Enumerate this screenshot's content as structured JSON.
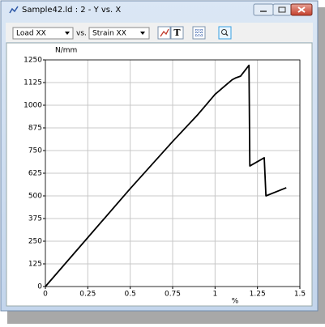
{
  "window": {
    "title": "Sample42.ld : 2 - Y vs. X"
  },
  "toolbar": {
    "y_select": "Load XX",
    "vs": "vs.",
    "x_select": "Strain XX",
    "text_button": "T"
  },
  "chart_data": {
    "type": "line",
    "y_label": "N/mm",
    "x_label": "%",
    "x": [
      0,
      0.25,
      0.5,
      0.75,
      0.9,
      1.0,
      1.05,
      1.1,
      1.12,
      1.15,
      1.2,
      1.205,
      1.29,
      1.3,
      1.42
    ],
    "series": [
      {
        "name": "Load XX",
        "color": "#000000",
        "values": [
          0,
          270,
          540,
          800,
          950,
          1060,
          1100,
          1140,
          1150,
          1160,
          1220,
          665,
          710,
          500,
          545
        ]
      }
    ],
    "xlim": [
      0,
      1.5
    ],
    "xticks": [
      0,
      0.25,
      0.5,
      0.75,
      1,
      1.25,
      1.5
    ],
    "ylim": [
      0,
      1250
    ],
    "yticks": [
      0,
      125,
      250,
      375,
      500,
      625,
      750,
      875,
      1000,
      1125,
      1250
    ],
    "grid": true
  }
}
